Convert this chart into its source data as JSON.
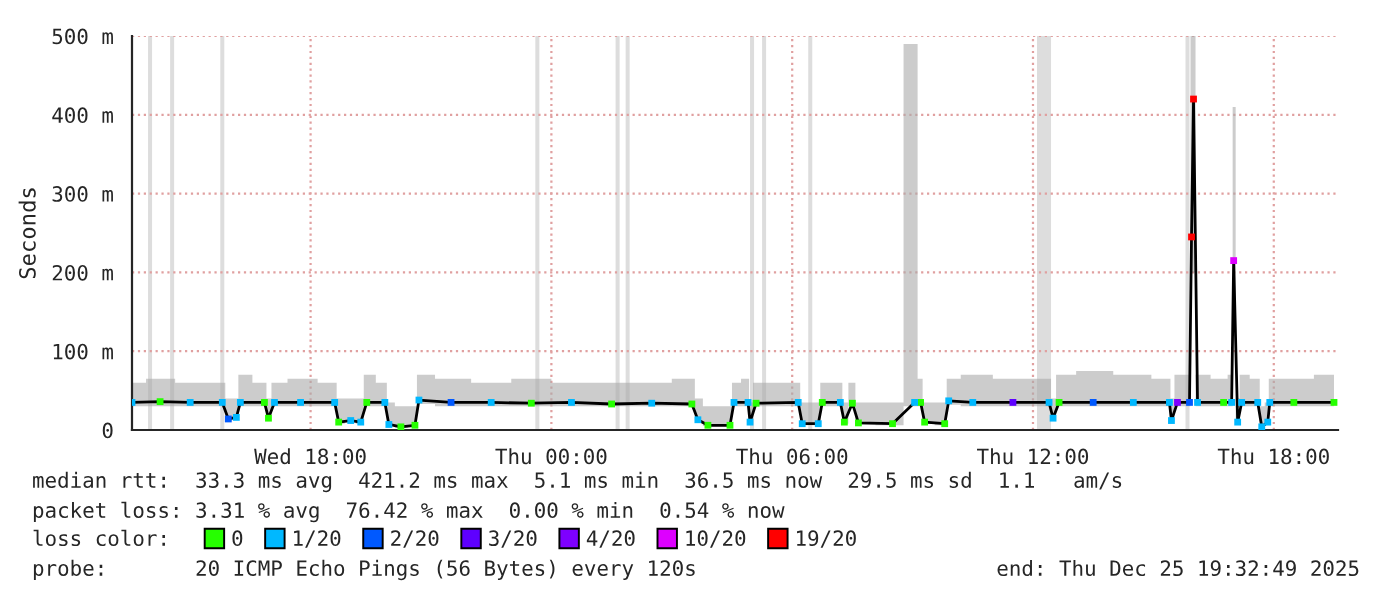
{
  "chart_data": {
    "type": "line",
    "ylabel": "Seconds",
    "xlim": [
      "2025-12-24T13:33",
      "2025-12-25T19:36"
    ],
    "xticks": [
      {
        "value": "2025-12-24T18:00",
        "label": "Wed 18:00"
      },
      {
        "value": "2025-12-25T00:00",
        "label": "Thu 00:00"
      },
      {
        "value": "2025-12-25T06:00",
        "label": "Thu 06:00"
      },
      {
        "value": "2025-12-25T12:00",
        "label": "Thu 12:00"
      },
      {
        "value": "2025-12-25T18:00",
        "label": "Thu 18:00"
      }
    ],
    "ylim": [
      0,
      500
    ],
    "yticks": [
      0,
      {
        "value": 100,
        "label": "100 m"
      },
      {
        "value": 200,
        "label": "200 m"
      },
      {
        "value": 300,
        "label": "300 m"
      },
      {
        "value": 400,
        "label": "400 m"
      },
      {
        "value": 500,
        "label": "500 m"
      }
    ],
    "grid": true,
    "legend": "bottom",
    "marker": "square",
    "line_style": "solid",
    "x": [
      "2025-12-24T13:33",
      "2025-12-24T14:15",
      "2025-12-24T15:00",
      "2025-12-24T15:48",
      "2025-12-24T15:57",
      "2025-12-24T16:09",
      "2025-12-24T16:15",
      "2025-12-24T16:51",
      "2025-12-24T16:57",
      "2025-12-24T17:06",
      "2025-12-24T17:45",
      "2025-12-24T18:36",
      "2025-12-24T18:42",
      "2025-12-24T19:00",
      "2025-12-24T19:15",
      "2025-12-24T19:24",
      "2025-12-24T19:51",
      "2025-12-24T19:57",
      "2025-12-24T20:15",
      "2025-12-24T20:36",
      "2025-12-24T20:42",
      "2025-12-24T21:30",
      "2025-12-24T22:30",
      "2025-12-24T23:30",
      "2025-12-25T00:30",
      "2025-12-25T01:30",
      "2025-12-25T02:30",
      "2025-12-25T03:30",
      "2025-12-25T03:39",
      "2025-12-25T03:54",
      "2025-12-25T04:27",
      "2025-12-25T04:33",
      "2025-12-25T04:54",
      "2025-12-25T04:57",
      "2025-12-25T05:06",
      "2025-12-25T06:09",
      "2025-12-25T06:15",
      "2025-12-25T06:39",
      "2025-12-25T06:45",
      "2025-12-25T07:12",
      "2025-12-25T07:18",
      "2025-12-25T07:30",
      "2025-12-25T07:39",
      "2025-12-25T08:30",
      "2025-12-25T09:03",
      "2025-12-25T09:12",
      "2025-12-25T09:18",
      "2025-12-25T09:48",
      "2025-12-25T09:54",
      "2025-12-25T10:30",
      "2025-12-25T11:30",
      "2025-12-25T12:24",
      "2025-12-25T12:30",
      "2025-12-25T12:39",
      "2025-12-25T13:30",
      "2025-12-25T14:30",
      "2025-12-25T15:24",
      "2025-12-25T15:27",
      "2025-12-25T15:36",
      "2025-12-25T15:54",
      "2025-12-25T15:57",
      "2025-12-25T16:00",
      "2025-12-25T16:06",
      "2025-12-25T16:45",
      "2025-12-25T16:57",
      "2025-12-25T17:00",
      "2025-12-25T17:06",
      "2025-12-25T17:12",
      "2025-12-25T17:36",
      "2025-12-25T17:42",
      "2025-12-25T17:51",
      "2025-12-25T17:54",
      "2025-12-25T18:30",
      "2025-12-25T19:30"
    ],
    "series": [
      {
        "color": "#000000",
        "marker": "none",
        "values": [
          35,
          36,
          35,
          35,
          14,
          16,
          35,
          35,
          15,
          35,
          35,
          35,
          10,
          12,
          10,
          35,
          35,
          7,
          4,
          6,
          38,
          35,
          35,
          34,
          35,
          33,
          34,
          33,
          13,
          6,
          6,
          35,
          35,
          10,
          34,
          35,
          8,
          8,
          35,
          35,
          10,
          34,
          9,
          8,
          35,
          35,
          10,
          8,
          37,
          35,
          35,
          35,
          15,
          35,
          35,
          35,
          35,
          12,
          35,
          35,
          245,
          420,
          35,
          35,
          35,
          215,
          10,
          35,
          35,
          4,
          10,
          35,
          35,
          35
        ],
        "lower": [
          30,
          30,
          30,
          30,
          12,
          13,
          30,
          30,
          12,
          30,
          30,
          30,
          8,
          10,
          8,
          30,
          30,
          5,
          3,
          4,
          33,
          30,
          30,
          30,
          30,
          30,
          30,
          30,
          11,
          5,
          5,
          30,
          30,
          8,
          30,
          30,
          6,
          6,
          30,
          30,
          8,
          30,
          7,
          6,
          30,
          30,
          8,
          6,
          32,
          30,
          30,
          30,
          12,
          30,
          30,
          30,
          30,
          10,
          30,
          30,
          200,
          200,
          30,
          30,
          30,
          140,
          8,
          30,
          30,
          3,
          8,
          30,
          30,
          30
        ],
        "upper": [
          60,
          65,
          60,
          60,
          40,
          40,
          70,
          60,
          40,
          60,
          65,
          60,
          40,
          40,
          40,
          70,
          60,
          35,
          30,
          30,
          70,
          65,
          60,
          65,
          60,
          60,
          60,
          65,
          40,
          30,
          30,
          60,
          65,
          35,
          60,
          60,
          35,
          35,
          60,
          60,
          35,
          60,
          35,
          35,
          490,
          65,
          35,
          35,
          65,
          70,
          65,
          65,
          40,
          70,
          75,
          70,
          65,
          40,
          70,
          70,
          500,
          500,
          70,
          65,
          70,
          410,
          40,
          70,
          65,
          30,
          35,
          65,
          65,
          70
        ]
      },
      {
        "type": "scatter",
        "name": "0",
        "color": "#26ff00",
        "x": [
          "2025-12-24T14:15",
          "2025-12-24T16:51",
          "2025-12-24T16:57",
          "2025-12-24T18:42",
          "2025-12-24T19:24",
          "2025-12-24T20:15",
          "2025-12-24T20:36",
          "2025-12-24T23:30",
          "2025-12-25T01:30",
          "2025-12-25T03:30",
          "2025-12-25T03:54",
          "2025-12-25T04:27",
          "2025-12-25T05:06",
          "2025-12-25T06:45",
          "2025-12-25T07:18",
          "2025-12-25T07:30",
          "2025-12-25T07:39",
          "2025-12-25T08:30",
          "2025-12-25T09:12",
          "2025-12-25T09:18",
          "2025-12-25T09:48",
          "2025-12-25T12:39",
          "2025-12-25T16:45",
          "2025-12-25T18:30",
          "2025-12-25T19:30"
        ],
        "values": [
          36,
          35,
          15,
          10,
          35,
          4,
          6,
          34,
          33,
          33,
          6,
          6,
          34,
          35,
          10,
          34,
          9,
          8,
          35,
          10,
          8,
          35,
          35,
          35,
          35
        ]
      },
      {
        "type": "scatter",
        "name": "1/20",
        "color": "#00b8ff",
        "x": [
          "2025-12-24T13:33",
          "2025-12-24T15:00",
          "2025-12-24T15:48",
          "2025-12-24T16:09",
          "2025-12-24T16:15",
          "2025-12-24T17:06",
          "2025-12-24T17:45",
          "2025-12-24T18:36",
          "2025-12-24T19:00",
          "2025-12-24T19:15",
          "2025-12-24T19:51",
          "2025-12-24T19:57",
          "2025-12-24T20:42",
          "2025-12-24T22:30",
          "2025-12-25T00:30",
          "2025-12-25T02:30",
          "2025-12-25T03:39",
          "2025-12-25T04:33",
          "2025-12-25T04:54",
          "2025-12-25T04:57",
          "2025-12-25T06:09",
          "2025-12-25T06:15",
          "2025-12-25T06:39",
          "2025-12-25T07:12",
          "2025-12-25T09:03",
          "2025-12-25T09:54",
          "2025-12-25T10:30",
          "2025-12-25T12:24",
          "2025-12-25T12:30",
          "2025-12-25T14:30",
          "2025-12-25T15:24",
          "2025-12-25T15:27",
          "2025-12-25T16:06",
          "2025-12-25T16:57",
          "2025-12-25T17:06",
          "2025-12-25T17:12",
          "2025-12-25T17:36",
          "2025-12-25T17:42",
          "2025-12-25T17:51",
          "2025-12-25T17:54"
        ],
        "values": [
          35,
          35,
          35,
          16,
          35,
          35,
          35,
          35,
          12,
          10,
          35,
          7,
          38,
          35,
          35,
          34,
          13,
          35,
          35,
          10,
          35,
          8,
          8,
          35,
          35,
          37,
          35,
          35,
          15,
          35,
          35,
          12,
          35,
          35,
          10,
          35,
          35,
          4,
          10,
          35
        ]
      },
      {
        "type": "scatter",
        "name": "2/20",
        "color": "#0059ff",
        "x": [
          "2025-12-24T15:57",
          "2025-12-24T21:30",
          "2025-12-25T13:30",
          "2025-12-25T15:54"
        ],
        "values": [
          14,
          35,
          35,
          35
        ]
      },
      {
        "type": "scatter",
        "name": "3/20",
        "color": "#5e00ff",
        "x": [
          "2025-12-25T11:30"
        ],
        "values": [
          35
        ]
      },
      {
        "type": "scatter",
        "name": "4/20",
        "color": "#7e00ff",
        "x": [
          "2025-12-25T15:36"
        ],
        "values": [
          35
        ]
      },
      {
        "type": "scatter",
        "name": "10/20",
        "color": "#dd00ff",
        "x": [
          "2025-12-25T17:00"
        ],
        "values": [
          215
        ]
      },
      {
        "type": "scatter",
        "name": "19/20",
        "color": "#ff0000",
        "x": [
          "2025-12-25T15:57",
          "2025-12-25T16:00"
        ],
        "values": [
          245,
          420
        ]
      }
    ],
    "bands": [
      {
        "axis": "x",
        "from": "2025-12-24T13:57",
        "to": "2025-12-24T14:03",
        "color": "#dddddd"
      },
      {
        "axis": "x",
        "from": "2025-12-24T14:30",
        "to": "2025-12-24T14:36",
        "color": "#dddddd"
      },
      {
        "axis": "x",
        "from": "2025-12-24T15:45",
        "to": "2025-12-24T15:51",
        "color": "#dddddd"
      },
      {
        "axis": "x",
        "from": "2025-12-24T23:36",
        "to": "2025-12-24T23:42",
        "color": "#dddddd"
      },
      {
        "axis": "x",
        "from": "2025-12-25T01:36",
        "to": "2025-12-25T01:42",
        "color": "#dddddd"
      },
      {
        "axis": "x",
        "from": "2025-12-25T01:51",
        "to": "2025-12-25T01:57",
        "color": "#dddddd"
      },
      {
        "axis": "x",
        "from": "2025-12-25T04:57",
        "to": "2025-12-25T05:03",
        "color": "#dddddd"
      },
      {
        "axis": "x",
        "from": "2025-12-25T05:15",
        "to": "2025-12-25T05:21",
        "color": "#dddddd"
      },
      {
        "axis": "x",
        "from": "2025-12-25T06:24",
        "to": "2025-12-25T06:30",
        "color": "#dddddd"
      },
      {
        "axis": "x",
        "from": "2025-12-25T12:06",
        "to": "2025-12-25T12:27",
        "color": "#dddddd"
      },
      {
        "axis": "x",
        "from": "2025-12-25T15:48",
        "to": "2025-12-25T15:54",
        "color": "#dddddd"
      }
    ],
    "annotations": [
      "median rtt:  33.3 ms avg  421.2 ms max  5.1 ms min  36.5 ms now  29.5 ms sd  1.1   am/s",
      "packet loss: 3.31 % avg  76.42 % max  0.00 % min  0.54 % now",
      "loss color:",
      "probe:       20 ICMP Echo Pings (56 Bytes) every 120s",
      "end: Thu Dec 25 19:32:49 2025"
    ]
  }
}
